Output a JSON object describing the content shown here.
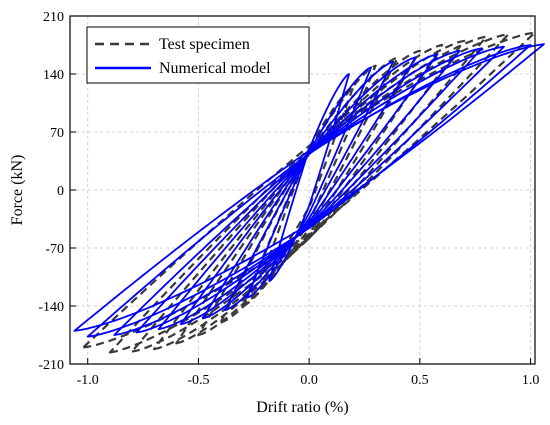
{
  "chart_data": {
    "type": "line",
    "title": "",
    "xlabel": "Drift ratio (%)",
    "ylabel": "Force (kN)",
    "xlim": [
      -1.08,
      1.02
    ],
    "ylim": [
      -210,
      210
    ],
    "x_ticks": [
      -1.0,
      -0.5,
      0.0,
      0.5,
      1.0
    ],
    "x_tick_labels": [
      "-1.0",
      "-0.5",
      "0.0",
      "0.5",
      "1.0"
    ],
    "y_ticks": [
      -210,
      -140,
      -70,
      0,
      70,
      140,
      210
    ],
    "y_tick_labels": [
      "-210",
      "-140",
      "-70",
      "0",
      "70",
      "140",
      "210"
    ],
    "grid": true,
    "legend_position": "top-left",
    "series": [
      {
        "name": "Test specimen",
        "style": "dashed",
        "color": "#3a3a3a",
        "loops": [
          {
            "a": 0.2,
            "fp": 125,
            "fn": -95
          },
          {
            "a": 0.3,
            "fp": 150,
            "fn": -140
          },
          {
            "a": 0.4,
            "fp": 160,
            "fn": -160
          },
          {
            "a": 0.5,
            "fp": 168,
            "fn": -175
          },
          {
            "a": 0.6,
            "fp": 175,
            "fn": -185
          },
          {
            "a": 0.7,
            "fp": 180,
            "fn": -192
          },
          {
            "a": 0.8,
            "fp": 185,
            "fn": -195
          },
          {
            "a": 0.9,
            "fp": 188,
            "fn": -196
          },
          {
            "a": 1.02,
            "fp": 190,
            "fn": -190
          }
        ]
      },
      {
        "name": "Numerical model",
        "style": "solid",
        "color": "#0000ff",
        "loops": [
          {
            "a": 0.18,
            "fp": 140,
            "fn": -110
          },
          {
            "a": 0.28,
            "fp": 148,
            "fn": -130
          },
          {
            "a": 0.38,
            "fp": 155,
            "fn": -145
          },
          {
            "a": 0.48,
            "fp": 160,
            "fn": -155
          },
          {
            "a": 0.58,
            "fp": 164,
            "fn": -162
          },
          {
            "a": 0.68,
            "fp": 168,
            "fn": -168
          },
          {
            "a": 0.78,
            "fp": 171,
            "fn": -172
          },
          {
            "a": 0.88,
            "fp": 173,
            "fn": -175
          },
          {
            "a": 1.0,
            "fp": 175,
            "fn": -177
          },
          {
            "a": 1.06,
            "fp": 176,
            "fn": -170
          }
        ]
      }
    ]
  }
}
